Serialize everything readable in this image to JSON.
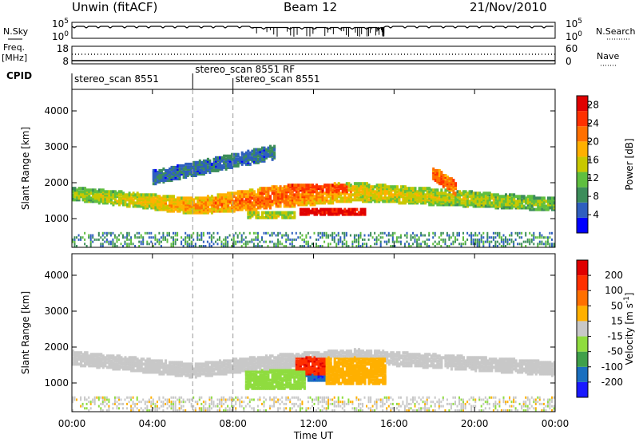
{
  "header": {
    "title": "Unwin (fitACF)",
    "beam": "Beam 12",
    "date": "21/Nov/2010"
  },
  "time_axis": {
    "label": "Time UT",
    "ticks": [
      "00:00",
      "04:00",
      "08:00",
      "12:00",
      "16:00",
      "20:00",
      "00:00"
    ],
    "tick_hours": [
      0,
      4,
      8,
      12,
      16,
      20,
      24
    ],
    "range_hours": [
      0,
      24
    ]
  },
  "noise_panel": {
    "left_label": "N.Sky",
    "right_label": "N.Search",
    "left_ticks": [
      "10^5",
      "10^0"
    ],
    "right_ticks": [
      "10^5",
      "10^0"
    ]
  },
  "freq_panel": {
    "left_label_1": "Freq.",
    "left_label_2": "[MHz]",
    "left_ticks": [
      "18",
      "8"
    ],
    "right_label": "Nave",
    "right_ticks": [
      "60",
      "0"
    ]
  },
  "cpid_panel": {
    "label": "CPID",
    "programs": [
      {
        "name": "stereo_scan 8551",
        "start_hour": 0.0
      },
      {
        "name": "stereo_scan 8551 RF",
        "start_hour": 6.0
      },
      {
        "name": "stereo_scan 8551",
        "start_hour": 8.0
      }
    ]
  },
  "chart_data": [
    {
      "type": "heatmap",
      "title": "",
      "xlabel": "",
      "ylabel": "Slant Range [km]",
      "xlim": [
        0,
        24
      ],
      "ylim": [
        200,
        4600
      ],
      "yticks": [
        "1000",
        "2000",
        "3000",
        "4000"
      ],
      "ytick_values": [
        1000,
        2000,
        3000,
        4000
      ],
      "colorbar": {
        "label": "Power [dB]",
        "ticks": [
          "4",
          "8",
          "12",
          "16",
          "20",
          "24",
          "28"
        ],
        "tick_values": [
          4,
          8,
          12,
          16,
          20,
          24,
          28
        ],
        "range": [
          0,
          30
        ],
        "colors": [
          "#0000ff",
          "#2f5fbf",
          "#3c8d5a",
          "#5fbf3f",
          "#c8c800",
          "#ffb000",
          "#ff7000",
          "#ff3000",
          "#e00000"
        ]
      },
      "features": [
        {
          "desc": "band",
          "x": [
            0,
            6,
            10,
            14,
            24
          ],
          "y": [
            1650,
            1300,
            1550,
            1700,
            1350
          ],
          "half_width_km": [
            110,
            140,
            190,
            160,
            110
          ],
          "level_db": [
            10,
            16,
            20,
            14,
            9
          ]
        },
        {
          "desc": "patch",
          "x": [
            11.2,
            14.5
          ],
          "y": [
            1050,
            1250
          ],
          "level_db": 28
        },
        {
          "desc": "patch",
          "x": [
            10.6,
            13.6
          ],
          "y": [
            1700,
            1900
          ],
          "level_db": 24
        },
        {
          "desc": "patch",
          "x": [
            8.6,
            11.0
          ],
          "y": [
            950,
            1150
          ],
          "level_db": 14
        },
        {
          "desc": "band",
          "x": [
            17.8,
            19.0
          ],
          "y": [
            2250,
            1800
          ],
          "level_db": 22
        },
        {
          "desc": "band",
          "x": [
            4.0,
            10.0
          ],
          "y": [
            2100,
            2800
          ],
          "level_db": 6
        }
      ]
    },
    {
      "type": "heatmap",
      "title": "",
      "xlabel": "Time UT",
      "ylabel": "Slant Range [km]",
      "xlim": [
        0,
        24
      ],
      "ylim": [
        200,
        4600
      ],
      "yticks": [
        "1000",
        "2000",
        "3000",
        "4000"
      ],
      "ytick_values": [
        1000,
        2000,
        3000,
        4000
      ],
      "colorbar": {
        "label": "Velocity [m s^-1]",
        "ticks": [
          "200",
          "100",
          "50",
          "15",
          "-15",
          "-50",
          "-100",
          "-200"
        ],
        "tick_values": [
          200,
          100,
          50,
          15,
          -15,
          -50,
          -100,
          -200
        ],
        "range": [
          -250,
          250
        ],
        "colors": [
          "#1a1aff",
          "#1a6fbf",
          "#3fa04a",
          "#8fdc3f",
          "#c8c8c8",
          "#ffb000",
          "#ff7000",
          "#ff3000",
          "#e00000"
        ]
      },
      "features": [
        {
          "desc": "band",
          "x": [
            0,
            6,
            10,
            14,
            24
          ],
          "y": [
            1650,
            1300,
            1550,
            1700,
            1350
          ],
          "velocity": 0
        },
        {
          "desc": "patch",
          "x": [
            11.0,
            14.5
          ],
          "y": [
            1200,
            1700
          ],
          "velocity": 180
        },
        {
          "desc": "patch",
          "x": [
            11.5,
            14.5
          ],
          "y": [
            1000,
            1200
          ],
          "velocity": -180
        },
        {
          "desc": "patch",
          "x": [
            8.5,
            11.5
          ],
          "y": [
            800,
            1300
          ],
          "velocity": -60
        },
        {
          "desc": "patch",
          "x": [
            12.5,
            15.5
          ],
          "y": [
            900,
            1700
          ],
          "velocity": 60
        }
      ]
    }
  ]
}
